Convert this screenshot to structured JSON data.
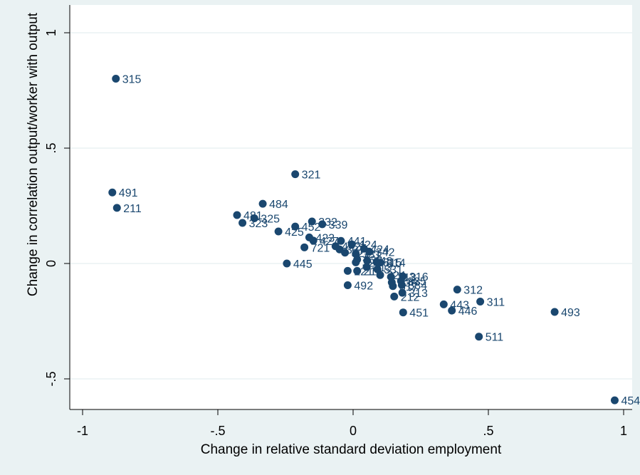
{
  "chart_data": {
    "type": "scatter",
    "title": "",
    "xlabel": "Change in relative standard deviation employment",
    "ylabel": "Change in correlation output/worker with output",
    "xlim": [
      -1.05,
      1.05
    ],
    "ylim": [
      -0.63,
      1.05
    ],
    "xticks": [
      {
        "value": -1,
        "label": "-1"
      },
      {
        "value": -0.5,
        "label": "-.5"
      },
      {
        "value": 0,
        "label": "0"
      },
      {
        "value": 0.5,
        "label": ".5"
      },
      {
        "value": 1,
        "label": "1"
      }
    ],
    "yticks": [
      {
        "value": -0.5,
        "label": "-.5"
      },
      {
        "value": 0,
        "label": "0"
      },
      {
        "value": 0.5,
        "label": ".5"
      },
      {
        "value": 1,
        "label": "1"
      }
    ],
    "grid": "horizontal",
    "marker_color": "#1a476f",
    "label_color": "#1a476f",
    "background_color": "#eaf2f3",
    "plot_background_color": "#ffffff",
    "points": [
      {
        "label": "315",
        "x": -0.877,
        "y": 0.801
      },
      {
        "label": "491",
        "x": -0.89,
        "y": 0.308
      },
      {
        "label": "211",
        "x": -0.873,
        "y": 0.241
      },
      {
        "label": "321",
        "x": -0.214,
        "y": 0.387
      },
      {
        "label": "484",
        "x": -0.334,
        "y": 0.259
      },
      {
        "label": "481",
        "x": -0.429,
        "y": 0.21
      },
      {
        "label": "325",
        "x": -0.365,
        "y": 0.196
      },
      {
        "label": "323",
        "x": -0.409,
        "y": 0.176
      },
      {
        "label": "425",
        "x": -0.276,
        "y": 0.139
      },
      {
        "label": "452",
        "x": -0.214,
        "y": 0.16
      },
      {
        "label": "332",
        "x": -0.152,
        "y": 0.182
      },
      {
        "label": "339",
        "x": -0.114,
        "y": 0.17
      },
      {
        "label": "423",
        "x": -0.162,
        "y": 0.113
      },
      {
        "label": "721",
        "x": -0.18,
        "y": 0.07
      },
      {
        "label": "427",
        "x": -0.147,
        "y": 0.099
      },
      {
        "label": "441",
        "x": -0.045,
        "y": 0.098
      },
      {
        "label": "424",
        "x": -0.005,
        "y": 0.083
      },
      {
        "label": "442",
        "x": -0.065,
        "y": 0.075
      },
      {
        "label": "327",
        "x": -0.05,
        "y": 0.061
      },
      {
        "label": "322",
        "x": -0.03,
        "y": 0.047
      },
      {
        "label": "331",
        "x": 0.01,
        "y": 0.042
      },
      {
        "label": "424",
        "x": 0.04,
        "y": 0.064
      },
      {
        "label": "342",
        "x": 0.06,
        "y": 0.051
      },
      {
        "label": "333",
        "x": 0.015,
        "y": 0.017
      },
      {
        "label": "448",
        "x": 0.052,
        "y": 0.012
      },
      {
        "label": "326",
        "x": 0.01,
        "y": 0.005
      },
      {
        "label": "515",
        "x": 0.087,
        "y": 0.006
      },
      {
        "label": "314",
        "x": 0.1,
        "y": 0.004
      },
      {
        "label": "445",
        "x": -0.245,
        "y": 0.0
      },
      {
        "label": "313",
        "x": 0.05,
        "y": -0.015
      },
      {
        "label": "531",
        "x": 0.09,
        "y": -0.025
      },
      {
        "label": "221",
        "x": -0.02,
        "y": -0.032
      },
      {
        "label": "211",
        "x": 0.015,
        "y": -0.032
      },
      {
        "label": "324",
        "x": 0.1,
        "y": -0.05
      },
      {
        "label": "213",
        "x": 0.14,
        "y": -0.058
      },
      {
        "label": "316",
        "x": 0.184,
        "y": -0.056
      },
      {
        "label": "335",
        "x": 0.177,
        "y": -0.076
      },
      {
        "label": "336",
        "x": 0.143,
        "y": -0.082
      },
      {
        "label": "334",
        "x": 0.18,
        "y": -0.093
      },
      {
        "label": "517",
        "x": 0.147,
        "y": -0.098
      },
      {
        "label": "492",
        "x": -0.02,
        "y": -0.094
      },
      {
        "label": "313",
        "x": 0.182,
        "y": -0.127
      },
      {
        "label": "212",
        "x": 0.152,
        "y": -0.143
      },
      {
        "label": "312",
        "x": 0.385,
        "y": -0.113
      },
      {
        "label": "311",
        "x": 0.47,
        "y": -0.165
      },
      {
        "label": "443",
        "x": 0.335,
        "y": -0.177
      },
      {
        "label": "446",
        "x": 0.365,
        "y": -0.204
      },
      {
        "label": "451",
        "x": 0.185,
        "y": -0.212
      },
      {
        "label": "493",
        "x": 0.745,
        "y": -0.21
      },
      {
        "label": "511",
        "x": 0.465,
        "y": -0.317
      },
      {
        "label": "454",
        "x": 0.967,
        "y": -0.593
      }
    ]
  }
}
